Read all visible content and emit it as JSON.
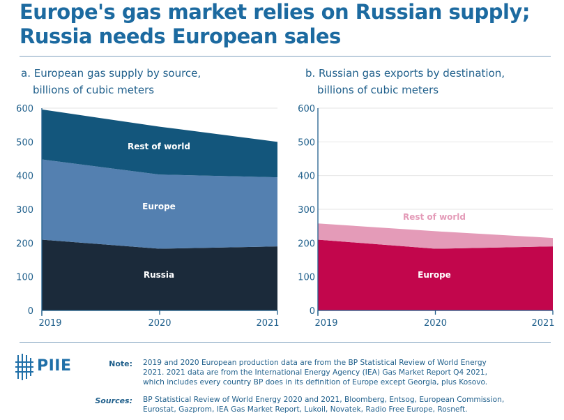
{
  "title": "Europe's gas market relies on Russian supply; Russia needs European sales",
  "colors": {
    "rest_of_world_left": "#13567c",
    "europe_left": "#5480b0",
    "russia_left": "#1b2a3a",
    "europe_right": "#c2064c",
    "rest_of_world_right": "#e49bb8",
    "text_blue": "#1f5f8b"
  },
  "chart_data": [
    {
      "type": "area",
      "stacked": true,
      "title": "a. European gas supply by source,",
      "title_line2": "billions of cubic meters",
      "x": [
        "2019",
        "2020",
        "2021"
      ],
      "ylim": [
        0,
        600
      ],
      "yticks": [
        "0",
        "100",
        "200",
        "300",
        "400",
        "500",
        "600"
      ],
      "series": [
        {
          "name": "Russia",
          "values": [
            210,
            183,
            190
          ],
          "color_key": "russia_left",
          "label_color": "#ffffff"
        },
        {
          "name": "Europe",
          "values": [
            238,
            220,
            205
          ],
          "color_key": "europe_left",
          "label_color": "#ffffff"
        },
        {
          "name": "Rest of world",
          "values": [
            148,
            142,
            105
          ],
          "color_key": "rest_of_world_left",
          "label_color": "#ffffff"
        }
      ]
    },
    {
      "type": "area",
      "stacked": true,
      "title": "b. Russian gas exports by destination,",
      "title_line2": "billions of cubic meters",
      "x": [
        "2019",
        "2020",
        "2021"
      ],
      "ylim": [
        0,
        600
      ],
      "yticks": [
        "0",
        "100",
        "200",
        "300",
        "400",
        "500",
        "600"
      ],
      "series": [
        {
          "name": "Europe",
          "values": [
            210,
            183,
            190
          ],
          "color_key": "europe_right",
          "label_color": "#ffffff"
        },
        {
          "name": "Rest of world",
          "values": [
            48,
            52,
            25
          ],
          "color_key": "rest_of_world_right",
          "label_color": "#e49bb8"
        }
      ]
    }
  ],
  "footer": {
    "logo": "PIIE",
    "note_label": "Note:",
    "note_lines": [
      "2019 and 2020 European production data are from the BP Statistical Review of World Energy",
      "2021. 2021 data are from the International Energy Agency (IEA) Gas Market Report Q4 2021,",
      "which includes every country BP does in its definition of Europe except Georgia, plus Kosovo."
    ],
    "sources_label": "Sources:",
    "sources_lines": [
      "BP Statistical Review of World Energy 2020 and 2021, Bloomberg, Entsog, European Commission,",
      "Eurostat, Gazprom, IEA Gas Market Report, Lukoil, Novatek, Radio Free Europe, Rosneft."
    ]
  }
}
